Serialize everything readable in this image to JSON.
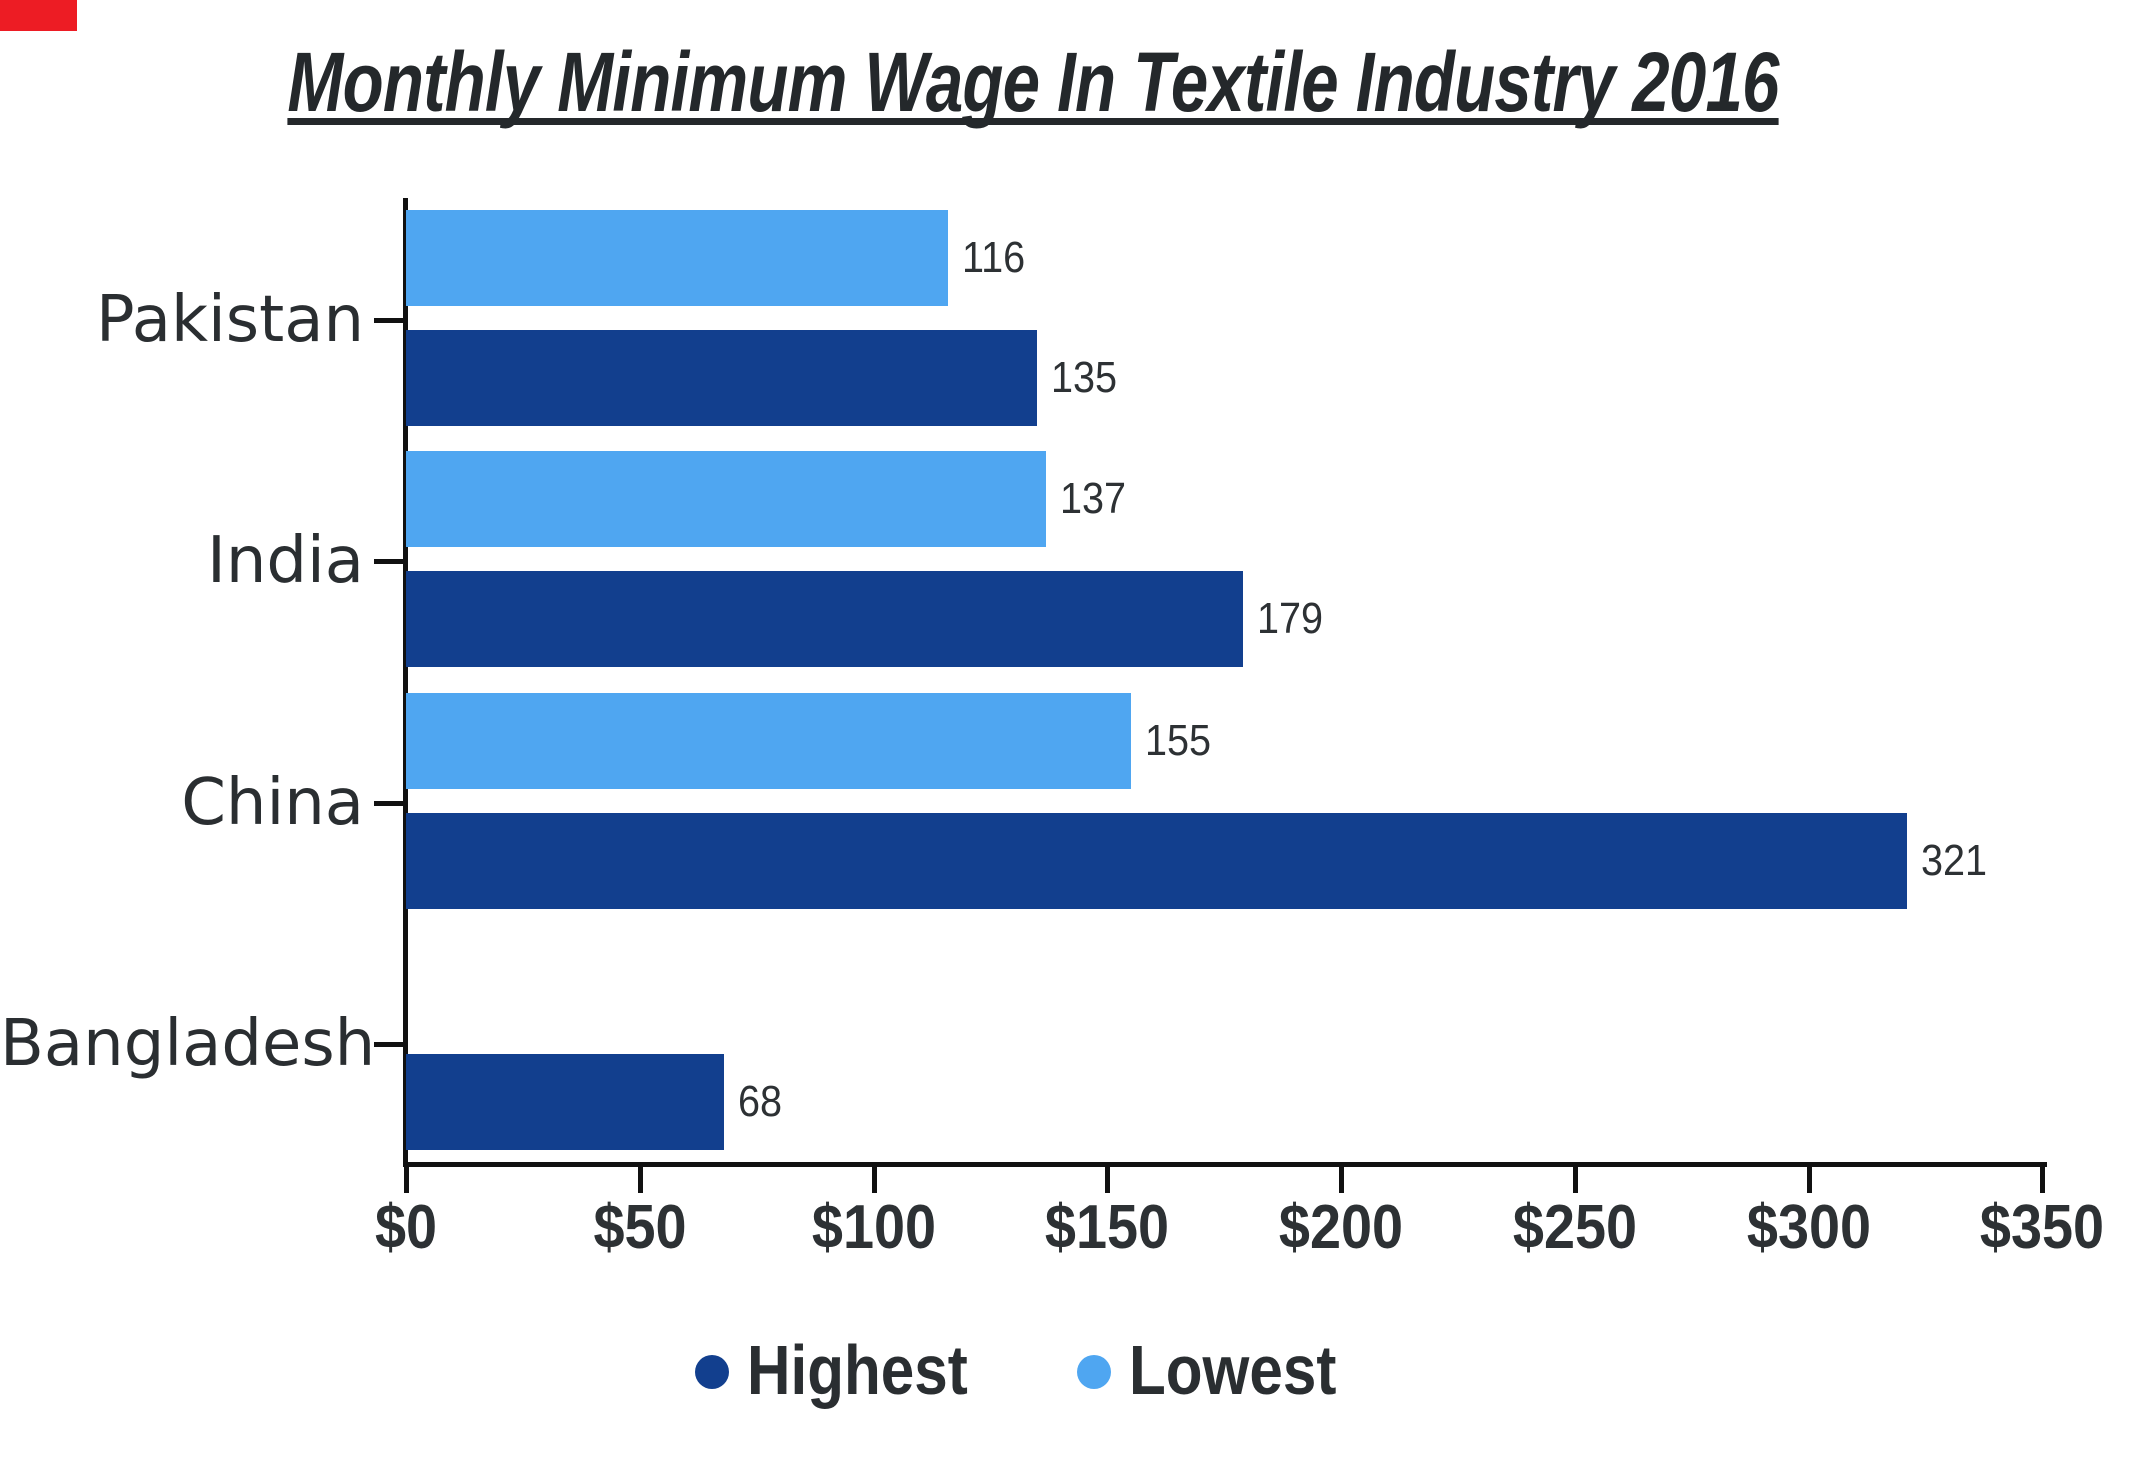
{
  "title": "Monthly Minimum Wage In Textile Industry 2016",
  "corner_marker_color": "#ed1c24",
  "colors": {
    "highest": "#123f8e",
    "lowest": "#4fa6f1",
    "axis": "#111111",
    "text": "#2d3134"
  },
  "legend": {
    "items": [
      {
        "label": "Highest",
        "color_key": "highest"
      },
      {
        "label": "Lowest",
        "color_key": "lowest"
      }
    ]
  },
  "chart_data": {
    "type": "bar",
    "orientation": "horizontal",
    "title": "Monthly Minimum Wage In Textile Industry 2016",
    "categories": [
      "Pakistan",
      "India",
      "China",
      "Bangladesh"
    ],
    "series": [
      {
        "name": "Lowest",
        "values": [
          116,
          137,
          155,
          null
        ]
      },
      {
        "name": "Highest",
        "values": [
          135,
          179,
          321,
          68
        ]
      }
    ],
    "x_ticks": [
      {
        "label": "$0",
        "value": 0
      },
      {
        "label": "$50",
        "value": 50
      },
      {
        "label": "$100",
        "value": 100
      },
      {
        "label": "$150",
        "value": 150
      },
      {
        "label": "$200",
        "value": 200
      },
      {
        "label": "$250",
        "value": 250
      },
      {
        "label": "$300",
        "value": 300
      },
      {
        "label": "$350",
        "value": 350
      }
    ],
    "xlim": [
      0,
      350
    ],
    "grid": false,
    "legend_position": "bottom",
    "bar_value_labels_shown": true
  }
}
